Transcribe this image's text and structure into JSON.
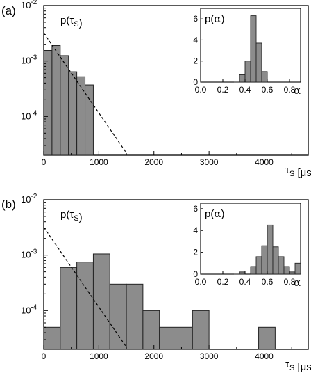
{
  "figure": {
    "panels": [
      {
        "label": "(a)",
        "ylabel": "p(τS)",
        "xlabel": "τS [μs]",
        "y_tick_mantissa": "10",
        "y_tick_labels": [
          "-2",
          "-3",
          "-4"
        ],
        "inset_label": "p(α)",
        "inset_xlabel": "α"
      },
      {
        "label": "(b)",
        "ylabel": "p(τS)",
        "xlabel": "τS [μs]",
        "y_tick_mantissa": "10",
        "y_tick_labels": [
          "-2",
          "-3",
          "-4"
        ],
        "inset_label": "p(α)",
        "inset_xlabel": "α"
      }
    ]
  },
  "chart_data": [
    {
      "type": "bar",
      "panel": "(a)",
      "xlabel": "τS [μs]",
      "ylabel": "p(τS)",
      "yscale": "log",
      "xlim": [
        0,
        4800
      ],
      "ylim": [
        2e-05,
        0.01
      ],
      "xticks": [
        0,
        1000,
        2000,
        3000,
        4000
      ],
      "bin_width": 150,
      "bins_left": [
        0,
        150,
        300,
        450,
        600,
        750,
        900
      ],
      "values": [
        0.00155,
        0.0019,
        0.00125,
        0.00064,
        0.00052,
        0.00037,
        9.5e-06
      ],
      "fit_line": {
        "x": [
          0,
          1500
        ],
        "y": [
          0.0032,
          2.2e-05
        ],
        "style": "dashed"
      },
      "inset": {
        "type": "bar",
        "ylabel": "p(α)",
        "xlabel": "α",
        "xlim": [
          0,
          0.9
        ],
        "ylim": [
          0,
          7
        ],
        "xticks": [
          "0.0",
          "0.2",
          "0.4",
          "0.6",
          "0.8"
        ],
        "yticks": [
          "0",
          "2",
          "4",
          "6"
        ],
        "bin_width": 0.05,
        "bins_left": [
          0.35,
          0.4,
          0.45,
          0.5,
          0.55,
          0.6
        ],
        "values": [
          0.7,
          2.0,
          6.3,
          3.7,
          1.0,
          0.0
        ]
      }
    },
    {
      "type": "bar",
      "panel": "(b)",
      "xlabel": "τS [μs]",
      "ylabel": "p(τS)",
      "yscale": "log",
      "xlim": [
        0,
        4800
      ],
      "ylim": [
        2e-05,
        0.01
      ],
      "xticks": [
        0,
        1000,
        2000,
        3000,
        4000
      ],
      "bin_width": 300,
      "bins_left": [
        0,
        300,
        600,
        900,
        1200,
        1500,
        1800,
        2100,
        2400,
        2700,
        3000,
        3300,
        3600,
        3900
      ],
      "values": [
        5e-05,
        0.0006,
        0.00075,
        0.00105,
        0.0003,
        0.0003,
        0.0001,
        5e-05,
        5e-05,
        0.0001,
        0.0,
        0.0,
        0.0,
        5e-05
      ],
      "fit_line": {
        "x": [
          0,
          1500
        ],
        "y": [
          0.0032,
          2.2e-05
        ],
        "style": "dashed"
      },
      "inset": {
        "type": "bar",
        "ylabel": "p(α)",
        "xlabel": "α",
        "xlim": [
          0,
          0.9
        ],
        "ylim": [
          0,
          6.5
        ],
        "xticks": [
          "0.0",
          "0.2",
          "0.4",
          "0.6",
          "0.8"
        ],
        "yticks": [
          "0",
          "2",
          "4",
          "6"
        ],
        "bin_width": 0.05,
        "bins_left": [
          0.35,
          0.45,
          0.5,
          0.55,
          0.6,
          0.65,
          0.7,
          0.75,
          0.8,
          0.85
        ],
        "values": [
          0.2,
          0.7,
          1.6,
          2.6,
          4.5,
          2.5,
          1.6,
          0.7,
          0.2,
          1.0
        ]
      }
    }
  ]
}
